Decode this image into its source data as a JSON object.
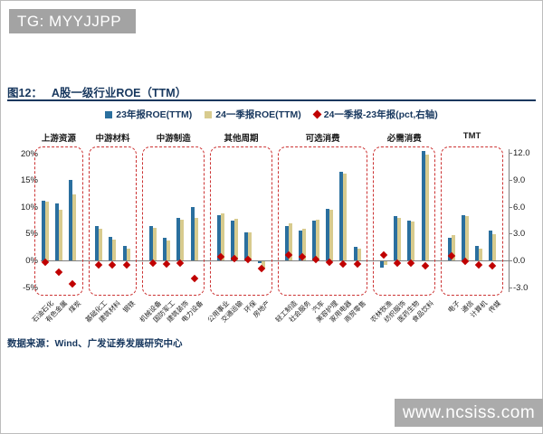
{
  "banner": {
    "text": "TG: MYYJJPP"
  },
  "figure": {
    "number": "图12：",
    "title": "A股一级行业ROE（TTM）"
  },
  "footer": {
    "source": "数据来源：Wind、广发证券发展研究中心"
  },
  "watermark": {
    "text": "www.ncsiss.com"
  },
  "chart_data": {
    "type": "bar",
    "title": "A股一级行业ROE（TTM）",
    "legend_position": "top",
    "grid": false,
    "left_axis": {
      "unit": "%",
      "range": [
        -5,
        20
      ],
      "ticks": [
        {
          "label": "20%",
          "value": 20
        },
        {
          "label": "15%",
          "value": 15
        },
        {
          "label": "10%",
          "value": 10
        },
        {
          "label": "5%",
          "value": 5
        },
        {
          "label": "0%",
          "value": 0
        },
        {
          "label": "-5%",
          "value": -5
        }
      ]
    },
    "right_axis": {
      "unit": "pct",
      "range": [
        -3,
        12
      ],
      "ticks": [
        {
          "label": "12.0",
          "value": 12
        },
        {
          "label": "9.0",
          "value": 9
        },
        {
          "label": "6.0",
          "value": 6
        },
        {
          "label": "3.0",
          "value": 3
        },
        {
          "label": "0.0",
          "value": 0
        },
        {
          "label": "-3.0",
          "value": -3
        }
      ]
    },
    "series": [
      {
        "name": "23年报ROE(TTM)",
        "type": "bar",
        "axis": "left",
        "color": "#2a6f9e",
        "marker": "square"
      },
      {
        "name": "24一季报ROE(TTM)",
        "type": "bar",
        "axis": "left",
        "color": "#d8cb8e",
        "marker": "square"
      },
      {
        "name": "24一季报-23年报(pct,右轴)",
        "type": "scatter",
        "axis": "right",
        "color": "#c00000",
        "marker": "diamond"
      }
    ],
    "group_box_color": "#cc3333",
    "groups": [
      {
        "name": "上游资源",
        "industries": [
          {
            "label": "石油石化",
            "v2023": 11.1,
            "v2024q1": 10.9,
            "diff": -0.2
          },
          {
            "label": "有色金属",
            "v2023": 10.7,
            "v2024q1": 9.4,
            "diff": -1.3
          },
          {
            "label": "煤炭",
            "v2023": 15.0,
            "v2024q1": 12.4,
            "diff": -2.6
          }
        ]
      },
      {
        "name": "中游材料",
        "industries": [
          {
            "label": "基础化工",
            "v2023": 6.4,
            "v2024q1": 5.9,
            "diff": -0.5
          },
          {
            "label": "建筑材料",
            "v2023": 4.4,
            "v2024q1": 3.9,
            "diff": -0.5
          },
          {
            "label": "钢铁",
            "v2023": 2.7,
            "v2024q1": 2.2,
            "diff": -0.5
          }
        ]
      },
      {
        "name": "中游制造",
        "industries": [
          {
            "label": "机械设备",
            "v2023": 6.4,
            "v2024q1": 6.1,
            "diff": -0.3
          },
          {
            "label": "国防军工",
            "v2023": 4.2,
            "v2024q1": 3.8,
            "diff": -0.4
          },
          {
            "label": "建筑装饰",
            "v2023": 7.9,
            "v2024q1": 7.6,
            "diff": -0.3
          },
          {
            "label": "电力设备",
            "v2023": 10.0,
            "v2024q1": 8.0,
            "diff": -2.0
          }
        ]
      },
      {
        "name": "其他周期",
        "industries": [
          {
            "label": "公用事业",
            "v2023": 8.4,
            "v2024q1": 8.8,
            "diff": 0.4
          },
          {
            "label": "交通运输",
            "v2023": 7.5,
            "v2024q1": 7.7,
            "diff": 0.2
          },
          {
            "label": "环保",
            "v2023": 5.2,
            "v2024q1": 5.3,
            "diff": 0.1
          },
          {
            "label": "房地产",
            "v2023": -0.4,
            "v2024q1": -1.3,
            "diff": -0.9
          }
        ]
      },
      {
        "name": "可选消费",
        "industries": [
          {
            "label": "轻工制造",
            "v2023": 6.4,
            "v2024q1": 7.0,
            "diff": 0.6
          },
          {
            "label": "社会服务",
            "v2023": 5.5,
            "v2024q1": 5.9,
            "diff": 0.4
          },
          {
            "label": "汽车",
            "v2023": 7.5,
            "v2024q1": 7.6,
            "diff": 0.1
          },
          {
            "label": "美容护理",
            "v2023": 9.6,
            "v2024q1": 9.4,
            "diff": -0.2
          },
          {
            "label": "家用电器",
            "v2023": 16.6,
            "v2024q1": 16.2,
            "diff": -0.4
          },
          {
            "label": "商贸零售",
            "v2023": 2.6,
            "v2024q1": 2.2,
            "diff": -0.4
          }
        ]
      },
      {
        "name": "必需消费",
        "industries": [
          {
            "label": "农林牧渔",
            "v2023": -1.2,
            "v2024q1": -0.6,
            "diff": 0.6
          },
          {
            "label": "纺织服饰",
            "v2023": 8.2,
            "v2024q1": 7.9,
            "diff": -0.3
          },
          {
            "label": "医药生物",
            "v2023": 7.5,
            "v2024q1": 7.2,
            "diff": -0.3
          },
          {
            "label": "食品饮料",
            "v2023": 20.4,
            "v2024q1": 19.8,
            "diff": -0.6
          }
        ]
      },
      {
        "name": "TMT",
        "industries": [
          {
            "label": "电子",
            "v2023": 4.2,
            "v2024q1": 4.7,
            "diff": 0.5
          },
          {
            "label": "通信",
            "v2023": 8.4,
            "v2024q1": 8.3,
            "diff": -0.1
          },
          {
            "label": "计算机",
            "v2023": 2.7,
            "v2024q1": 2.2,
            "diff": -0.5
          },
          {
            "label": "传媒",
            "v2023": 5.5,
            "v2024q1": 4.9,
            "diff": -0.6
          }
        ]
      }
    ]
  }
}
